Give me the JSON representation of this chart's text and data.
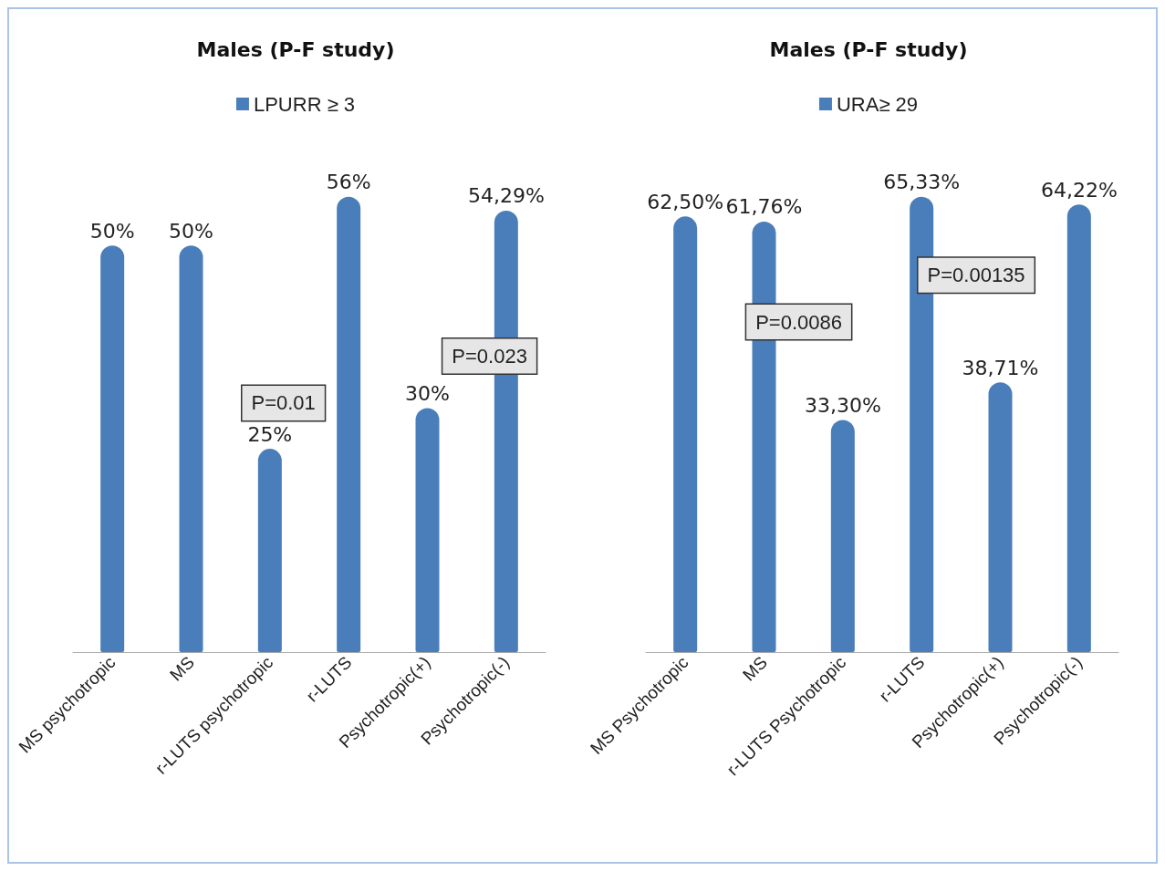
{
  "chart_data": [
    {
      "type": "bar",
      "title": "Males (P-F study)",
      "categories": [
        "MS psychotropic",
        "MS",
        "r-LUTS psychotropic",
        "r-LUTS",
        "Psychotropic(+)",
        "Psychotropic(-)"
      ],
      "series": [
        {
          "name": "LPURR ≥ 3",
          "color": "#4a7ebb",
          "values": [
            50,
            50,
            25,
            56,
            30,
            54.29
          ],
          "value_labels": [
            "50%",
            "50%",
            "25%",
            "56%",
            "30%",
            "54,29%"
          ]
        }
      ],
      "annotations": [
        "P=0.01",
        "P=0.023"
      ],
      "legend": "top"
    },
    {
      "type": "bar",
      "title": "Males (P-F study)",
      "categories": [
        "MS Psychotropic",
        "MS",
        "r-LUTS Psychotropic",
        "r-LUTS",
        "Psychotropic(+)",
        "Psychotropic(-)"
      ],
      "series": [
        {
          "name": "URA≥ 29",
          "color": "#4a7ebb",
          "values": [
            62.5,
            61.76,
            33.3,
            65.33,
            38.71,
            64.22
          ],
          "value_labels": [
            "62,50%",
            "61,76%",
            "33,30%",
            "65,33%",
            "38,71%",
            "64,22%"
          ]
        }
      ],
      "annotations": [
        "P=0.0086",
        "P=0.00135"
      ],
      "legend": "top"
    }
  ]
}
